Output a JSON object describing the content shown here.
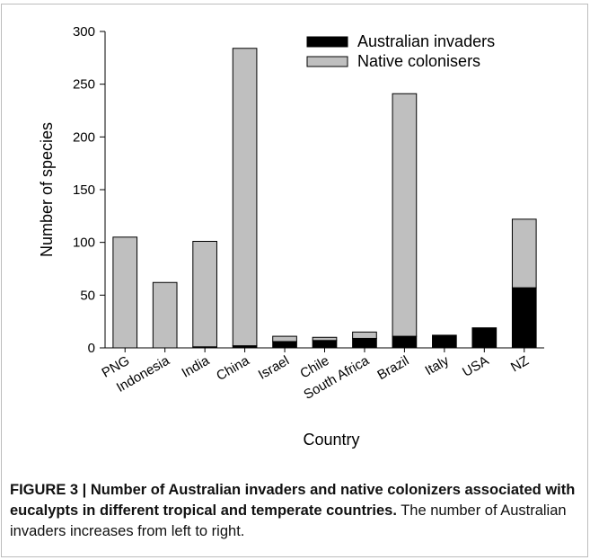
{
  "chart_data": {
    "type": "bar",
    "stacked": true,
    "categories": [
      "PNG",
      "Indonesia",
      "India",
      "China",
      "Israel",
      "Chile",
      "South Africa",
      "Brazil",
      "Italy",
      "USA",
      "NZ"
    ],
    "series": [
      {
        "name": "Australian invaders",
        "color": "#000000",
        "values": [
          0,
          0,
          1,
          2,
          6,
          7,
          9,
          11,
          12,
          19,
          57
        ]
      },
      {
        "name": "Native colonisers",
        "color": "#bfbfbf",
        "values": [
          105,
          62,
          100,
          282,
          5,
          3,
          6,
          230,
          0,
          0,
          65
        ]
      }
    ],
    "xlabel": "Country",
    "ylabel": "Number of species",
    "ylim": [
      0,
      300
    ],
    "yticks": [
      0,
      50,
      100,
      150,
      200,
      250,
      300
    ],
    "grid": false,
    "legend_position": "top-right"
  },
  "caption": {
    "bold": "FIGURE 3 | Number of Australian invaders and native colonizers associated with eucalypts in different tropical and temperate countries.",
    "normal": " The number of Australian invaders increases from left to right."
  }
}
